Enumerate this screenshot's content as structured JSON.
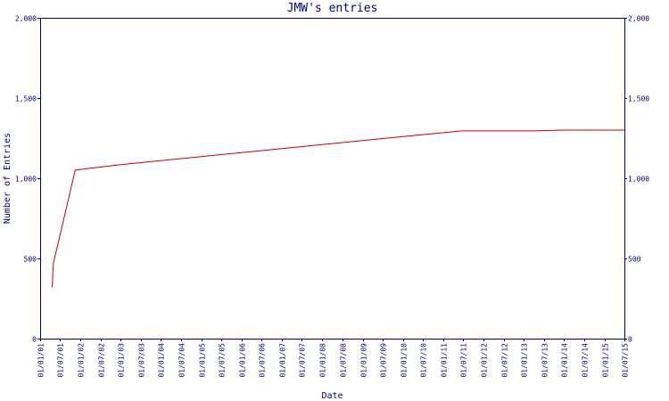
{
  "chart_data": {
    "type": "line",
    "title": "JMW's entries",
    "xlabel": "Date",
    "ylabel": "Number of Entries",
    "ylim": [
      0,
      2000
    ],
    "y_ticks": [
      0,
      500,
      1000,
      1500,
      2000
    ],
    "y_tick_labels": [
      "0",
      "500",
      "1,000",
      "1,500",
      "2,000"
    ],
    "y_axis_duplicated_right": true,
    "x_ticks": [
      "01/01/01",
      "01/07/01",
      "01/01/02",
      "01/07/02",
      "01/01/03",
      "01/07/03",
      "01/01/04",
      "01/07/04",
      "01/01/05",
      "01/07/05",
      "01/01/06",
      "01/07/06",
      "01/01/07",
      "01/07/07",
      "01/01/08",
      "01/07/08",
      "01/01/09",
      "01/07/09",
      "01/01/10",
      "01/07/10",
      "01/01/11",
      "01/07/11",
      "01/01/12",
      "01/07/12",
      "01/01/13",
      "01/07/13",
      "01/01/14",
      "01/07/14",
      "01/01/15",
      "01/07/15"
    ],
    "grid": false,
    "colors": {
      "axis": "#000080",
      "series": "#cc0000"
    },
    "series": [
      {
        "x": [
          "2001-04-20",
          "2001-05-01",
          "2001-06-15",
          "2001-11-15",
          "2002-01-01",
          "2003-01-01",
          "2004-01-01",
          "2005-01-01",
          "2006-01-01",
          "2007-01-01",
          "2008-01-01",
          "2009-01-01",
          "2010-01-01",
          "2011-06-15",
          "2012-06-01",
          "2013-04-01",
          "2014-01-01",
          "2015-01-01",
          "2015-07-01"
        ],
        "values": [
          320,
          470,
          600,
          1050,
          1055,
          1085,
          1110,
          1135,
          1160,
          1185,
          1210,
          1235,
          1260,
          1295,
          1295,
          1295,
          1300,
          1300,
          1300
        ]
      }
    ]
  }
}
